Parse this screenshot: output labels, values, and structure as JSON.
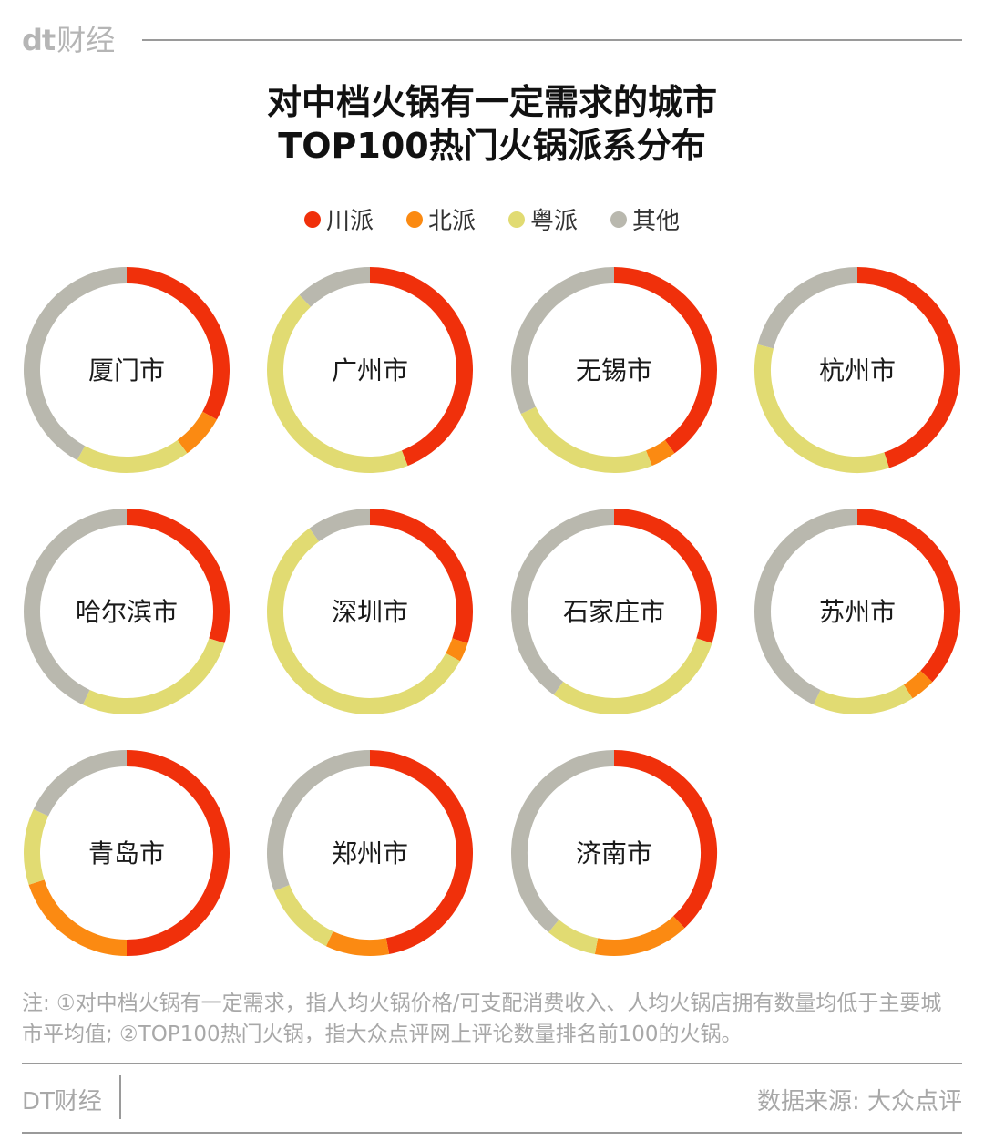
{
  "header": {
    "logo_mark": "dt",
    "logo_text": "财经"
  },
  "title_line1": "对中档火锅有一定需求的城市",
  "title_line2": "TOP100热门火锅派系分布",
  "chart_data": {
    "type": "donut",
    "legend": [
      {
        "name": "川派",
        "color": "#f0300b"
      },
      {
        "name": "北派",
        "color": "#fb8a12"
      },
      {
        "name": "粤派",
        "color": "#e1db72"
      },
      {
        "name": "其他",
        "color": "#b9b8ae"
      }
    ],
    "cities": [
      {
        "name": "厦门市",
        "values": [
          33,
          7,
          18,
          42
        ]
      },
      {
        "name": "广州市",
        "values": [
          44,
          0,
          44,
          12
        ]
      },
      {
        "name": "无锡市",
        "values": [
          40,
          4,
          24,
          32
        ]
      },
      {
        "name": "杭州市",
        "values": [
          45,
          0,
          34,
          21
        ]
      },
      {
        "name": "哈尔滨市",
        "values": [
          30,
          0,
          27,
          43
        ]
      },
      {
        "name": "深圳市",
        "values": [
          30,
          3,
          57,
          10
        ]
      },
      {
        "name": "石家庄市",
        "values": [
          30,
          0,
          30,
          40
        ]
      },
      {
        "name": "苏州市",
        "values": [
          37,
          4,
          16,
          43
        ]
      },
      {
        "name": "青岛市",
        "values": [
          50,
          20,
          12,
          18
        ]
      },
      {
        "name": "郑州市",
        "values": [
          47,
          10,
          12,
          31
        ]
      },
      {
        "name": "济南市",
        "values": [
          38,
          15,
          8,
          39
        ]
      }
    ]
  },
  "note": "注: ①对中档火锅有一定需求，指人均火锅价格/可支配消费收入、人均火锅店拥有数量均低于主要城市平均值; ②TOP100热门火锅，指大众点评网上评论数量排名前100的火锅。",
  "footer": {
    "brand": "DT财经",
    "source": "数据来源: 大众点评"
  }
}
